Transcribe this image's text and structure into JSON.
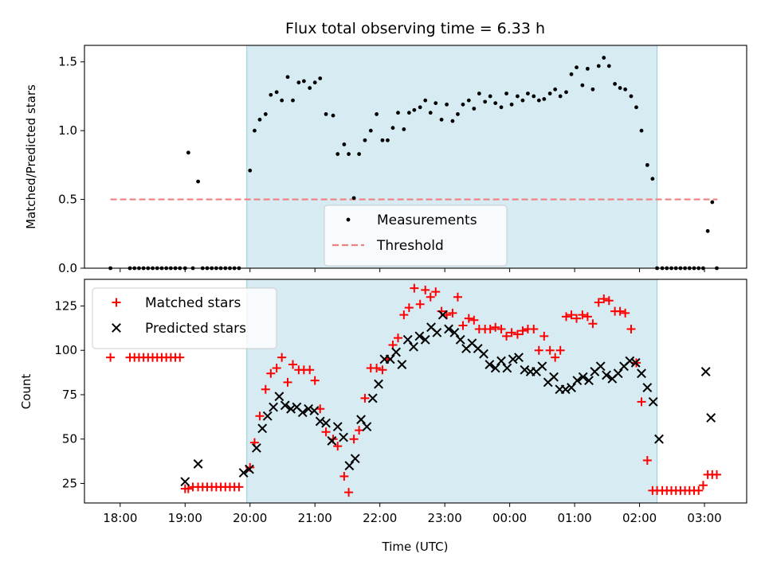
{
  "chart_data": [
    {
      "type": "scatter",
      "title": "Flux total observing time = 6.33 h",
      "ylabel": "Matched/Predicted stars",
      "xlabel": "",
      "xlim": [
        17.45,
        27.65
      ],
      "ylim": [
        0,
        1.62
      ],
      "yticks": [
        0,
        0.5,
        1.0,
        1.5
      ],
      "ytick_labels": [
        "0.0",
        "0.5",
        "1.0",
        "1.5"
      ],
      "shaded_span": [
        19.95,
        26.27
      ],
      "legend": {
        "placement": "lower-center",
        "entries": [
          {
            "label": "Measurements",
            "marker": "dot",
            "color": "#000000"
          },
          {
            "label": "Threshold",
            "marker": "dashed-line",
            "color": "#f08080"
          }
        ]
      },
      "series": [
        {
          "name": "Measurements",
          "marker": "dot",
          "color": "#000000",
          "x": [
            17.85,
            18.15,
            18.22,
            18.29,
            18.36,
            18.43,
            18.5,
            18.57,
            18.64,
            18.71,
            18.78,
            18.85,
            18.92,
            19.0,
            19.05,
            19.12,
            19.2,
            19.27,
            19.34,
            19.41,
            19.48,
            19.55,
            19.62,
            19.69,
            19.76,
            19.83,
            20.0,
            20.07,
            20.15,
            20.24,
            20.32,
            20.41,
            20.49,
            20.58,
            20.66,
            20.75,
            20.83,
            20.92,
            21.0,
            21.08,
            21.17,
            21.28,
            21.35,
            21.45,
            21.52,
            21.6,
            21.68,
            21.77,
            21.86,
            21.95,
            22.04,
            22.12,
            22.2,
            22.28,
            22.37,
            22.45,
            22.53,
            22.62,
            22.7,
            22.78,
            22.86,
            22.95,
            23.03,
            23.12,
            23.2,
            23.28,
            23.37,
            23.45,
            23.53,
            23.62,
            23.7,
            23.78,
            23.87,
            23.95,
            24.03,
            24.12,
            24.2,
            24.28,
            24.37,
            24.45,
            24.53,
            24.62,
            24.7,
            24.78,
            24.87,
            24.95,
            25.03,
            25.12,
            25.2,
            25.28,
            25.37,
            25.45,
            25.53,
            25.62,
            25.7,
            25.78,
            25.87,
            25.95,
            26.03,
            26.12,
            26.2,
            26.27,
            26.35,
            26.42,
            26.49,
            26.56,
            26.63,
            26.7,
            26.77,
            26.84,
            26.91,
            26.98,
            27.05,
            27.12,
            27.19
          ],
          "y": [
            0.0,
            0.0,
            0.0,
            0.0,
            0.0,
            0.0,
            0.0,
            0.0,
            0.0,
            0.0,
            0.0,
            0.0,
            0.0,
            0.0,
            0.84,
            0.0,
            0.63,
            0.0,
            0.0,
            0.0,
            0.0,
            0.0,
            0.0,
            0.0,
            0.0,
            0.0,
            0.71,
            1.0,
            1.08,
            1.12,
            1.26,
            1.28,
            1.22,
            1.39,
            1.22,
            1.35,
            1.36,
            1.31,
            1.35,
            1.38,
            1.12,
            1.11,
            0.83,
            0.9,
            0.83,
            0.51,
            0.83,
            0.93,
            1.0,
            1.12,
            0.93,
            0.93,
            1.02,
            1.13,
            1.01,
            1.13,
            1.15,
            1.17,
            1.22,
            1.13,
            1.2,
            1.08,
            1.19,
            1.07,
            1.12,
            1.19,
            1.22,
            1.16,
            1.27,
            1.21,
            1.25,
            1.2,
            1.17,
            1.27,
            1.19,
            1.25,
            1.22,
            1.27,
            1.25,
            1.22,
            1.23,
            1.27,
            1.3,
            1.25,
            1.28,
            1.41,
            1.46,
            1.33,
            1.45,
            1.3,
            1.47,
            1.53,
            1.47,
            1.34,
            1.31,
            1.3,
            1.25,
            1.17,
            1.0,
            0.75,
            0.65,
            0.0,
            0.0,
            0.0,
            0.0,
            0.0,
            0.0,
            0.0,
            0.0,
            0.0,
            0.0,
            0.0,
            0.27,
            0.48,
            0.0
          ]
        },
        {
          "name": "Threshold",
          "marker": "dashed-line",
          "color": "#f08080",
          "x": [
            17.85,
            27.2
          ],
          "y": [
            0.5,
            0.5
          ]
        }
      ]
    },
    {
      "type": "scatter",
      "title": "",
      "ylabel": "Count",
      "xlabel": "Time (UTC)",
      "xlim": [
        17.45,
        27.65
      ],
      "ylim": [
        14,
        140
      ],
      "yticks": [
        25,
        50,
        75,
        100,
        125
      ],
      "ytick_labels": [
        "25",
        "50",
        "75",
        "100",
        "125"
      ],
      "xticks": [
        18,
        19,
        20,
        21,
        22,
        23,
        24,
        25,
        26,
        27
      ],
      "xtick_labels": [
        "18:00",
        "19:00",
        "20:00",
        "21:00",
        "22:00",
        "23:00",
        "00:00",
        "01:00",
        "02:00",
        "03:00"
      ],
      "shaded_span": [
        19.95,
        26.27
      ],
      "legend": {
        "placement": "top-left",
        "entries": [
          {
            "label": "Matched stars",
            "marker": "plus",
            "color": "#ff0000"
          },
          {
            "label": "Predicted stars",
            "marker": "x",
            "color": "#000000"
          }
        ]
      },
      "series": [
        {
          "name": "Matched stars",
          "marker": "plus",
          "color": "#ff0000",
          "x": [
            17.85,
            18.15,
            18.22,
            18.29,
            18.36,
            18.43,
            18.5,
            18.57,
            18.64,
            18.71,
            18.78,
            18.85,
            18.92,
            19.0,
            19.05,
            19.12,
            19.2,
            19.27,
            19.34,
            19.41,
            19.48,
            19.55,
            19.62,
            19.69,
            19.76,
            19.83,
            20.0,
            20.07,
            20.15,
            20.24,
            20.32,
            20.41,
            20.49,
            20.58,
            20.66,
            20.75,
            20.83,
            20.92,
            21.0,
            21.08,
            21.17,
            21.28,
            21.35,
            21.45,
            21.52,
            21.6,
            21.68,
            21.77,
            21.86,
            21.95,
            22.04,
            22.12,
            22.2,
            22.28,
            22.37,
            22.45,
            22.53,
            22.62,
            22.7,
            22.78,
            22.86,
            22.95,
            23.03,
            23.12,
            23.2,
            23.28,
            23.37,
            23.45,
            23.53,
            23.62,
            23.7,
            23.78,
            23.87,
            23.95,
            24.03,
            24.12,
            24.2,
            24.28,
            24.37,
            24.45,
            24.53,
            24.62,
            24.7,
            24.78,
            24.87,
            24.95,
            25.03,
            25.12,
            25.2,
            25.28,
            25.37,
            25.45,
            25.53,
            25.62,
            25.7,
            25.78,
            25.87,
            25.95,
            26.03,
            26.12,
            26.2,
            26.27,
            26.35,
            26.42,
            26.49,
            26.56,
            26.63,
            26.7,
            26.77,
            26.84,
            26.91,
            26.98,
            27.05,
            27.12,
            27.19
          ],
          "y": [
            96,
            96,
            96,
            96,
            96,
            96,
            96,
            96,
            96,
            96,
            96,
            96,
            96,
            22,
            22,
            23,
            23,
            23,
            23,
            23,
            23,
            23,
            23,
            23,
            23,
            23,
            34,
            48,
            63,
            78,
            87,
            90,
            96,
            82,
            92,
            89,
            89,
            89,
            83,
            67,
            54,
            50,
            46,
            29,
            20,
            50,
            55,
            73,
            90,
            90,
            89,
            95,
            103,
            107,
            120,
            124,
            135,
            126,
            134,
            130,
            133,
            122,
            120,
            121,
            130,
            114,
            118,
            117,
            112,
            112,
            112,
            113,
            112,
            108,
            110,
            109,
            111,
            112,
            112,
            100,
            108,
            100,
            96,
            100,
            119,
            120,
            118,
            120,
            119,
            115,
            127,
            129,
            128,
            122,
            122,
            121,
            112,
            93,
            71,
            38,
            21,
            21,
            21,
            21,
            21,
            21,
            21,
            21,
            21,
            21,
            21,
            24,
            30,
            30,
            30
          ]
        },
        {
          "name": "Predicted stars",
          "marker": "x",
          "color": "#000000",
          "x": [
            19.0,
            19.2,
            19.9,
            19.99,
            20.1,
            20.19,
            20.27,
            20.36,
            20.45,
            20.54,
            20.63,
            20.72,
            20.81,
            20.9,
            20.99,
            21.08,
            21.17,
            21.26,
            21.35,
            21.44,
            21.53,
            21.62,
            21.71,
            21.8,
            21.89,
            21.98,
            22.07,
            22.16,
            22.25,
            22.34,
            22.43,
            22.52,
            22.61,
            22.7,
            22.79,
            22.88,
            22.97,
            23.06,
            23.15,
            23.24,
            23.33,
            23.42,
            23.51,
            23.6,
            23.69,
            23.78,
            23.87,
            23.96,
            24.05,
            24.14,
            24.23,
            24.32,
            24.41,
            24.5,
            24.59,
            24.68,
            24.77,
            24.86,
            24.95,
            25.04,
            25.13,
            25.22,
            25.31,
            25.4,
            25.49,
            25.58,
            25.67,
            25.76,
            25.85,
            25.94,
            26.03,
            26.12,
            26.21,
            26.3,
            27.02,
            27.1
          ],
          "y": [
            26,
            36,
            31,
            33,
            45,
            56,
            63,
            68,
            74,
            69,
            67,
            68,
            65,
            67,
            66,
            60,
            59,
            49,
            57,
            51,
            35,
            39,
            61,
            57,
            73,
            81,
            95,
            95,
            99,
            92,
            106,
            102,
            108,
            106,
            113,
            110,
            120,
            112,
            110,
            106,
            101,
            104,
            101,
            98,
            92,
            90,
            94,
            90,
            95,
            96,
            89,
            88,
            88,
            91,
            82,
            85,
            78,
            78,
            79,
            83,
            85,
            83,
            88,
            91,
            86,
            84,
            87,
            91,
            94,
            93,
            87,
            79,
            71,
            50,
            88,
            62
          ]
        }
      ]
    }
  ]
}
